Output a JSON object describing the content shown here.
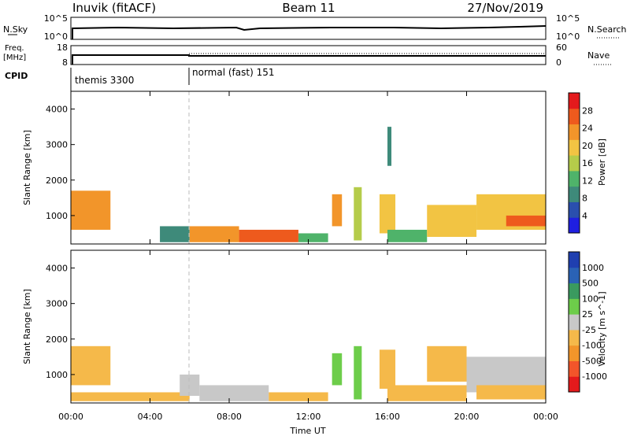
{
  "header": {
    "station": "Inuvik (fitACF)",
    "beam": "Beam 11",
    "date": "27/Nov/2019"
  },
  "noise_panel": {
    "left_label": "N.Sky",
    "right_label": "N.Search",
    "left_ticks": [
      "10^5",
      "10^0"
    ],
    "right_ticks": [
      "10^5",
      "10^0"
    ]
  },
  "freq_panel": {
    "left_label_1": "Freq.",
    "left_label_2": "[MHz]",
    "right_label": "Nave",
    "left_ticks": [
      "18",
      "8"
    ],
    "right_ticks": [
      "60",
      "0"
    ]
  },
  "cpid": {
    "label": "CPID",
    "segments": [
      {
        "name": "themis 3300",
        "start_hour": 0
      },
      {
        "name": "normal (fast) 151",
        "start_hour": 6
      }
    ]
  },
  "chart_data": [
    {
      "type": "heatmap",
      "title": "",
      "xlabel": "",
      "ylabel": "Slant Range [km]",
      "xlim": [
        0,
        24
      ],
      "ylim": [
        200,
        4500
      ],
      "yticks": [
        1000,
        2000,
        3000,
        4000
      ],
      "colorbar": {
        "label": "Power [dB]",
        "range": [
          0,
          32
        ],
        "ticks": [
          "4",
          "8",
          "12",
          "16",
          "20",
          "24",
          "28"
        ]
      },
      "bands": [
        {
          "x0": 0.0,
          "x1": 2.0,
          "y0": 600,
          "y1": 1700,
          "value": 22
        },
        {
          "x0": 4.5,
          "x1": 6.0,
          "y0": 250,
          "y1": 700,
          "value": 10
        },
        {
          "x0": 6.0,
          "x1": 8.5,
          "y0": 250,
          "y1": 700,
          "value": 22
        },
        {
          "x0": 8.5,
          "x1": 11.5,
          "y0": 250,
          "y1": 600,
          "value": 26
        },
        {
          "x0": 11.5,
          "x1": 13.0,
          "y0": 250,
          "y1": 500,
          "value": 12
        },
        {
          "x0": 13.2,
          "x1": 13.7,
          "y0": 700,
          "y1": 1600,
          "value": 22
        },
        {
          "x0": 14.3,
          "x1": 14.7,
          "y0": 300,
          "y1": 1800,
          "value": 16
        },
        {
          "x0": 15.6,
          "x1": 16.4,
          "y0": 500,
          "y1": 1600,
          "value": 18
        },
        {
          "x0": 16.0,
          "x1": 18.0,
          "y0": 250,
          "y1": 600,
          "value": 14
        },
        {
          "x0": 18.0,
          "x1": 20.5,
          "y0": 400,
          "y1": 1300,
          "value": 18
        },
        {
          "x0": 20.5,
          "x1": 24.0,
          "y0": 600,
          "y1": 1600,
          "value": 18
        },
        {
          "x0": 22.0,
          "x1": 24.0,
          "y0": 700,
          "y1": 1000,
          "value": 26
        },
        {
          "x0": 16.0,
          "x1": 16.2,
          "y0": 2400,
          "y1": 3500,
          "value": 10
        }
      ]
    },
    {
      "type": "heatmap",
      "title": "",
      "xlabel": "Time UT",
      "ylabel": "Slant Range [km]",
      "xlim": [
        0,
        24
      ],
      "ylim": [
        200,
        4500
      ],
      "yticks": [
        1000,
        2000,
        3000,
        4000
      ],
      "xticks": [
        "00:00",
        "04:00",
        "08:00",
        "12:00",
        "16:00",
        "20:00",
        "00:00"
      ],
      "colorbar": {
        "label": "Velocity [m s^-1]",
        "range": [
          -1200,
          1200
        ],
        "ticks": [
          "1000",
          "500",
          "100",
          "25",
          "-25",
          "-100",
          "-500",
          "-1000"
        ]
      },
      "bands": [
        {
          "x0": 0.0,
          "x1": 2.0,
          "y0": 700,
          "y1": 1800,
          "value": -300
        },
        {
          "x0": 0.0,
          "x1": 6.0,
          "y0": 250,
          "y1": 500,
          "value": -200
        },
        {
          "x0": 5.5,
          "x1": 6.5,
          "y0": 400,
          "y1": 1000,
          "value": 0
        },
        {
          "x0": 6.5,
          "x1": 10.0,
          "y0": 250,
          "y1": 700,
          "value": 50
        },
        {
          "x0": 10.0,
          "x1": 13.0,
          "y0": 250,
          "y1": 500,
          "value": -200
        },
        {
          "x0": 13.2,
          "x1": 13.7,
          "y0": 700,
          "y1": 1600,
          "value": 300
        },
        {
          "x0": 14.3,
          "x1": 14.7,
          "y0": 300,
          "y1": 1800,
          "value": 200
        },
        {
          "x0": 15.6,
          "x1": 16.4,
          "y0": 600,
          "y1": 1700,
          "value": -150
        },
        {
          "x0": 16.0,
          "x1": 20.0,
          "y0": 250,
          "y1": 700,
          "value": -150
        },
        {
          "x0": 18.0,
          "x1": 20.0,
          "y0": 800,
          "y1": 1800,
          "value": -300
        },
        {
          "x0": 20.0,
          "x1": 24.0,
          "y0": 500,
          "y1": 1500,
          "value": 60
        },
        {
          "x0": 20.5,
          "x1": 24.0,
          "y0": 300,
          "y1": 700,
          "value": -200
        }
      ]
    }
  ]
}
